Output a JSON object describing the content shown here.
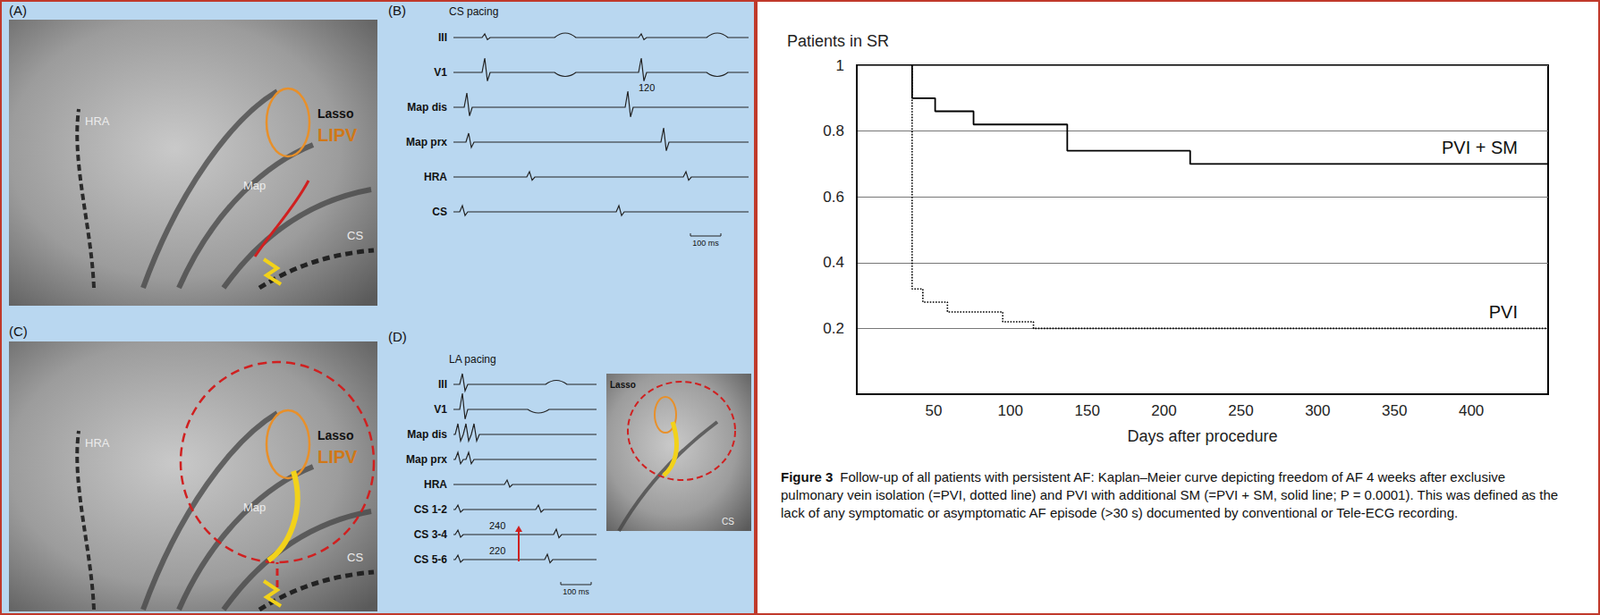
{
  "panels": [
    {
      "letter": "(A)",
      "labels": [
        "HRA",
        "Lasso",
        "LIPV",
        "Map",
        "CS"
      ]
    },
    {
      "letter": "(B)",
      "title": "CS pacing",
      "leads": [
        "III",
        "V1",
        "Map dis",
        "Map prx",
        "HRA",
        "CS"
      ],
      "annotations": [
        120
      ],
      "scale_bar": "100 ms"
    },
    {
      "letter": "(C)",
      "labels": [
        "HRA",
        "Lasso",
        "LIPV",
        "Map",
        "CS"
      ]
    },
    {
      "letter": "(D)",
      "title": "LA pacing",
      "leads": [
        "III",
        "V1",
        "Map dis",
        "Map prx",
        "HRA",
        "CS 1-2",
        "CS 3-4",
        "CS 5-6"
      ],
      "annotations": [
        240,
        220
      ],
      "scale_bar": "100 ms",
      "inset_labels": [
        "Lasso",
        "CS"
      ]
    }
  ],
  "chart_data": {
    "type": "line",
    "title": "Patients in SR",
    "x_label": "Days after procedure",
    "xlim": [
      0,
      450
    ],
    "xticks": [
      50,
      100,
      150,
      200,
      250,
      300,
      350,
      400
    ],
    "ylim": [
      0,
      1
    ],
    "yticks": [
      0.2,
      0.4,
      0.6,
      0.8,
      1
    ],
    "grid": true,
    "series": [
      {
        "name": "PVI + SM",
        "color": "#000000",
        "line_style": "solid",
        "x": [
          36,
          36,
          51,
          76,
          137,
          217
        ],
        "values": [
          1,
          0.9,
          0.86,
          0.82,
          0.74,
          0.7
        ]
      },
      {
        "name": "PVI",
        "color": "#000000",
        "line_style": "dotted",
        "x": [
          36,
          36,
          43,
          59,
          95,
          115
        ],
        "values": [
          1,
          0.32,
          0.28,
          0.25,
          0.22,
          0.2
        ]
      }
    ]
  },
  "caption": {
    "label": "Figure 3",
    "text": "Follow-up of all patients with persistent AF: Kaplan–Meier curve depicting freedom of AF 4 weeks after exclusive pulmonary vein isolation (=PVI, dotted line) and PVI with additional SM (=PVI + SM, solid line; P = 0.0001). This was defined as the lack of any symptomatic or asymptomatic AF episode (>30 s) documented by conventional or Tele-ECG recording."
  }
}
